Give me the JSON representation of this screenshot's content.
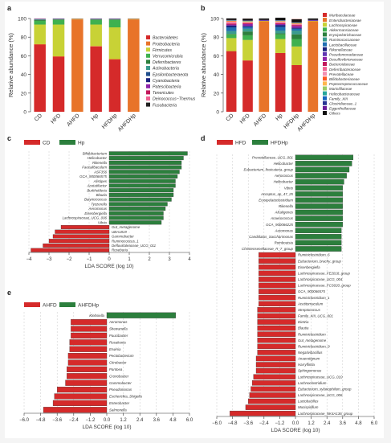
{
  "panel_labels": [
    "a",
    "b",
    "c",
    "d",
    "e"
  ],
  "colors": {
    "red": "#d52a2a",
    "green": "#2c7f3d",
    "bar_bg": "#f3c8c4"
  },
  "chart_data": [
    {
      "panel": "a",
      "type": "bar",
      "stacked": true,
      "ylabel": "Relative abundance (%)",
      "ylim": [
        0,
        100
      ],
      "yticks": [
        0,
        20,
        40,
        60,
        80,
        100
      ],
      "categories": [
        "CD",
        "HFD",
        "AHFD",
        "Hp",
        "HFDHp",
        "AHFDHp"
      ],
      "series": [
        {
          "name": "Bacteroidetes",
          "color": "#d52a2a",
          "values": [
            72,
            59,
            0,
            70,
            56,
            0
          ]
        },
        {
          "name": "Proteobacteria",
          "color": "#e8742a",
          "values": [
            0.5,
            0.5,
            99,
            0.5,
            0.5,
            99
          ]
        },
        {
          "name": "Firmicutes",
          "color": "#c8d236",
          "values": [
            21,
            34,
            0.5,
            23,
            34,
            0.5
          ]
        },
        {
          "name": "Verrucomicrobia",
          "color": "#3fb14f",
          "values": [
            4,
            5,
            0,
            5,
            8,
            0
          ]
        },
        {
          "name": "Deferribacteres",
          "color": "#2c7f3d",
          "values": [
            1,
            0.5,
            0,
            0.5,
            0.5,
            0
          ]
        },
        {
          "name": "Actinobacteria",
          "color": "#3a9b8f",
          "values": [
            0.5,
            0.3,
            0,
            0.3,
            0.3,
            0
          ]
        },
        {
          "name": "Epsilonbacteraeota",
          "color": "#1f4e8c",
          "values": [
            0.3,
            0.3,
            0,
            0.3,
            0.3,
            0
          ]
        },
        {
          "name": "Cyanobacteria",
          "color": "#1a237e",
          "values": [
            0.2,
            0.2,
            0,
            0.2,
            0.2,
            0
          ]
        },
        {
          "name": "Patescibacteria",
          "color": "#8e24aa",
          "values": [
            0.2,
            0.1,
            0,
            0.1,
            0.1,
            0
          ]
        },
        {
          "name": "Tenericutes",
          "color": "#c2185b",
          "values": [
            0.1,
            0.1,
            0,
            0.1,
            0.1,
            0
          ]
        },
        {
          "name": "Deinococcus−Thermus",
          "color": "#f06292",
          "values": [
            0,
            0,
            0.3,
            0,
            0,
            0.3
          ]
        },
        {
          "name": "Fusobacteria",
          "color": "#222222",
          "values": [
            0,
            0,
            0.2,
            0,
            0,
            0.2
          ]
        }
      ]
    },
    {
      "panel": "b",
      "type": "bar",
      "stacked": true,
      "ylabel": "Relative abundance (%)",
      "ylim": [
        0,
        100
      ],
      "yticks": [
        0,
        20,
        40,
        60,
        80,
        100
      ],
      "categories": [
        "CD",
        "HFD",
        "AHFD",
        "Hp",
        "HFDHp",
        "AHFDHp"
      ],
      "series": [
        {
          "name": "Muribaculaceae",
          "color": "#d52a2a",
          "values": [
            65,
            55,
            0,
            63,
            50,
            0
          ]
        },
        {
          "name": "Enterobacteriaceae",
          "color": "#e8742a",
          "values": [
            0,
            0,
            97,
            0,
            0,
            97
          ]
        },
        {
          "name": "Lachnospiraceae",
          "color": "#c8d236",
          "values": [
            14,
            22,
            0.5,
            15,
            20,
            0.5
          ]
        },
        {
          "name": "Akkermansiaceae",
          "color": "#3fb14f",
          "values": [
            4,
            5,
            0,
            5,
            8,
            0
          ]
        },
        {
          "name": "Erysipelotrichaceae",
          "color": "#2c7f3d",
          "values": [
            0.5,
            4,
            0,
            1,
            5,
            0
          ]
        },
        {
          "name": "Ruminococcaceae",
          "color": "#3a9b8f",
          "values": [
            3,
            3,
            0,
            3,
            4,
            0
          ]
        },
        {
          "name": "Lactobacillaceae",
          "color": "#1f6fb2",
          "values": [
            4,
            2,
            0,
            4,
            2,
            0
          ]
        },
        {
          "name": "Rikenellaceae",
          "color": "#1a237e",
          "values": [
            2,
            1,
            0,
            2,
            1,
            0
          ]
        },
        {
          "name": "Pseudomonadaceae",
          "color": "#5e35b1",
          "values": [
            0,
            0,
            1,
            0,
            0,
            1
          ]
        },
        {
          "name": "Desulfovibrionaceae",
          "color": "#8e24aa",
          "values": [
            1,
            2,
            0,
            1,
            2,
            0
          ]
        },
        {
          "name": "Bacteroidaceae",
          "color": "#c2185b",
          "values": [
            1,
            1,
            0,
            1,
            1,
            0
          ]
        },
        {
          "name": "Deferribacteraceae",
          "color": "#f06292",
          "values": [
            1,
            0.5,
            0,
            0.5,
            0.5,
            0
          ]
        },
        {
          "name": "Prevotellaceae",
          "color": "#f48fb1",
          "values": [
            1,
            0.5,
            0,
            1,
            0.5,
            0
          ]
        },
        {
          "name": "Bifidobacteriaceae",
          "color": "#ff5722",
          "values": [
            0.5,
            0.3,
            0,
            0.3,
            0.3,
            0
          ]
        },
        {
          "name": "Peptostreptococcaceae",
          "color": "#ffb74d",
          "values": [
            0.3,
            0.5,
            0,
            0.3,
            0.5,
            0
          ]
        },
        {
          "name": "Marinifilaceae",
          "color": "#9ccc65",
          "values": [
            0.3,
            0.3,
            0,
            0.3,
            0.3,
            0
          ]
        },
        {
          "name": "Helicobacteraceae",
          "color": "#26a69a",
          "values": [
            0.3,
            0.3,
            0,
            0.3,
            0.3,
            0
          ]
        },
        {
          "name": "Family_XIII",
          "color": "#1565c0",
          "values": [
            0.2,
            0.2,
            0,
            0.2,
            0.2,
            0
          ]
        },
        {
          "name": "Clostridiaceae_1",
          "color": "#283593",
          "values": [
            0.2,
            0.2,
            0,
            0.2,
            0.2,
            0
          ]
        },
        {
          "name": "Eggerthellaceae",
          "color": "#6a1b9a",
          "values": [
            0.1,
            0.1,
            0,
            0.1,
            0.1,
            0
          ]
        },
        {
          "name": "Others",
          "color": "#111111",
          "values": [
            1.7,
            1.9,
            1.5,
            2.6,
            3.2,
            1.5
          ]
        }
      ]
    },
    {
      "panel": "c",
      "type": "bar",
      "orientation": "horizontal",
      "legend": [
        "CD",
        "Hp"
      ],
      "xlabel": "LDA SCORE (log 10)",
      "xlim": [
        -4,
        4
      ],
      "xticks": [
        -4,
        -3,
        -2,
        -1,
        0,
        1,
        2,
        3,
        4
      ],
      "categories": [
        "Bifidobacterium",
        "Helicobacter",
        "Rikenella",
        "Faecalibaculum",
        "ASF356",
        "GCA_900066575",
        "Alistipes",
        "Acetatifactor",
        "Burkholderia",
        "Blautia",
        "Butyricicoccus",
        "Tyzzerella",
        "Aeromonas",
        "Eisenbergiella",
        "Lachnospiraceae_UCG_006",
        "Vibrio",
        "Gut_metagenome",
        "UBA1819",
        "Gammobacter",
        "Ruminococcus_1",
        "Defluviitaleaceae_UCG_011",
        "Roseburia"
      ],
      "values": [
        3.9,
        3.7,
        3.6,
        3.6,
        3.5,
        3.4,
        3.3,
        3.3,
        3.2,
        3.2,
        3.1,
        2.9,
        2.8,
        2.7,
        2.7,
        2.6,
        -2.4,
        -2.7,
        -2.8,
        -3.0,
        -3.3,
        -3.9
      ]
    },
    {
      "panel": "d",
      "type": "bar",
      "orientation": "horizontal",
      "legend": [
        "HFD",
        "HFDHp"
      ],
      "xlabel": "LDA SCORE (log 10)",
      "xlim": [
        -6,
        6
      ],
      "xticks": [
        -6.0,
        -4.8,
        -3.6,
        -2.4,
        -1.2,
        0.0,
        1.2,
        2.4,
        3.6,
        4.8,
        6.0
      ],
      "categories": [
        "Prevotellaceae_UCG_001",
        "Helicobacter",
        "Eubacterium_fissicatena_group",
        "Aerococcus",
        "Helicobacter",
        "Vibrio",
        "Acceptus_ap_47_25",
        "Erysipelatoclostridium",
        "Rikenella",
        "Alcaligenes",
        "Anaerococcus",
        "GCA_900066225",
        "Aeromonas",
        "Candidatus_Saccharimonas",
        "Romboutsia",
        "Christensenellaceae_R_7_group",
        "Ruminiclostridium_6",
        "Eubacterium_brachy_group",
        "Eisenbergiella",
        "Lachnospiraceae_FE2018_group",
        "Lachnospiraceae_UCG_004",
        "Lachnospiraceae_FCS020_group",
        "GCA_900066575",
        "Ruminiclostridium_1",
        "Acetitomaculum",
        "Streptococcus",
        "Family_XIII_UCG_001",
        "Dietzia",
        "Blautia",
        "Ruminiclostridium",
        "Gut_metagenome",
        "Ruminiclostridium_9",
        "Negativibacillus",
        "Anaerotignum",
        "Harryflintia",
        "Sphingomonas",
        "Lachnospiraceae_UCG_010",
        "Lachnoclostridium",
        "Eubacterium_xylanophilum_group",
        "Lachnospiraceae_UCG_006",
        "Lactobacillus",
        "Mucispirillum",
        "Lachnospiraceae_NK4A136_group"
      ],
      "values": [
        4.4,
        4.3,
        4.1,
        3.9,
        3.7,
        3.6,
        3.6,
        3.6,
        3.6,
        3.6,
        3.6,
        3.6,
        3.5,
        3.5,
        3.5,
        3.5,
        -2.8,
        -2.8,
        -2.8,
        -2.8,
        -2.8,
        -2.8,
        -2.8,
        -2.8,
        -2.8,
        -2.9,
        -2.9,
        -2.9,
        -2.9,
        -2.9,
        -2.9,
        -2.9,
        -2.9,
        -3.0,
        -3.0,
        -3.0,
        -3.2,
        -3.3,
        -3.4,
        -3.5,
        -3.6,
        -3.8,
        -5.0
      ]
    },
    {
      "panel": "e",
      "type": "bar",
      "orientation": "horizontal",
      "legend": [
        "AHFD",
        "AHFDHp"
      ],
      "xlabel": "LDA SCORE (log 10)",
      "xlim": [
        -6,
        6
      ],
      "xticks": [
        -6.0,
        -4.8,
        -3.6,
        -2.4,
        -1.2,
        0.0,
        1.2,
        2.4,
        3.6,
        4.8,
        6.0
      ],
      "categories": [
        "Klebsiella",
        "Aeromonas",
        "Shewanella",
        "Paucibacter",
        "Rosakonia",
        "Erwinia",
        "Pectobacterium",
        "Citrobacter",
        "Pantoea",
        "Cronobacter",
        "Gammobacter",
        "Pseudomonas",
        "Escherichia_Shigella",
        "Enterobacter",
        "Salmonella"
      ],
      "values": [
        5.0,
        -2.6,
        -2.6,
        -2.6,
        -2.7,
        -2.7,
        -2.8,
        -2.8,
        -2.9,
        -2.9,
        -3.0,
        -3.6,
        -3.8,
        -3.9,
        -4.6
      ]
    }
  ]
}
